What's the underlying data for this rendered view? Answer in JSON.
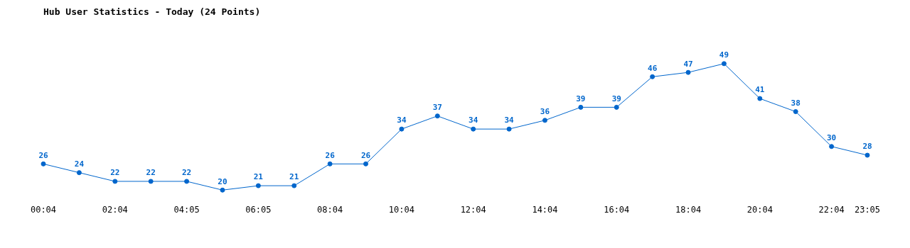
{
  "chart_data": {
    "type": "line",
    "title": "Hub User Statistics - Today (24 Points)",
    "categories": [
      "00:04",
      null,
      "02:04",
      null,
      "04:05",
      null,
      "06:05",
      null,
      "08:04",
      null,
      "10:04",
      null,
      "12:04",
      null,
      "14:04",
      null,
      "16:04",
      null,
      "18:04",
      null,
      "20:04",
      null,
      "22:04",
      "23:05"
    ],
    "series": [
      {
        "color": "#0066cc",
        "values": [
          26,
          24,
          22,
          22,
          22,
          20,
          21,
          21,
          26,
          26,
          34,
          37,
          34,
          34,
          36,
          39,
          39,
          46,
          47,
          49,
          41,
          38,
          30,
          28
        ]
      }
    ],
    "data_labels": true,
    "marker": "circle",
    "line_style": "solid",
    "grid": false,
    "legend": false,
    "tick_labels": "x"
  }
}
